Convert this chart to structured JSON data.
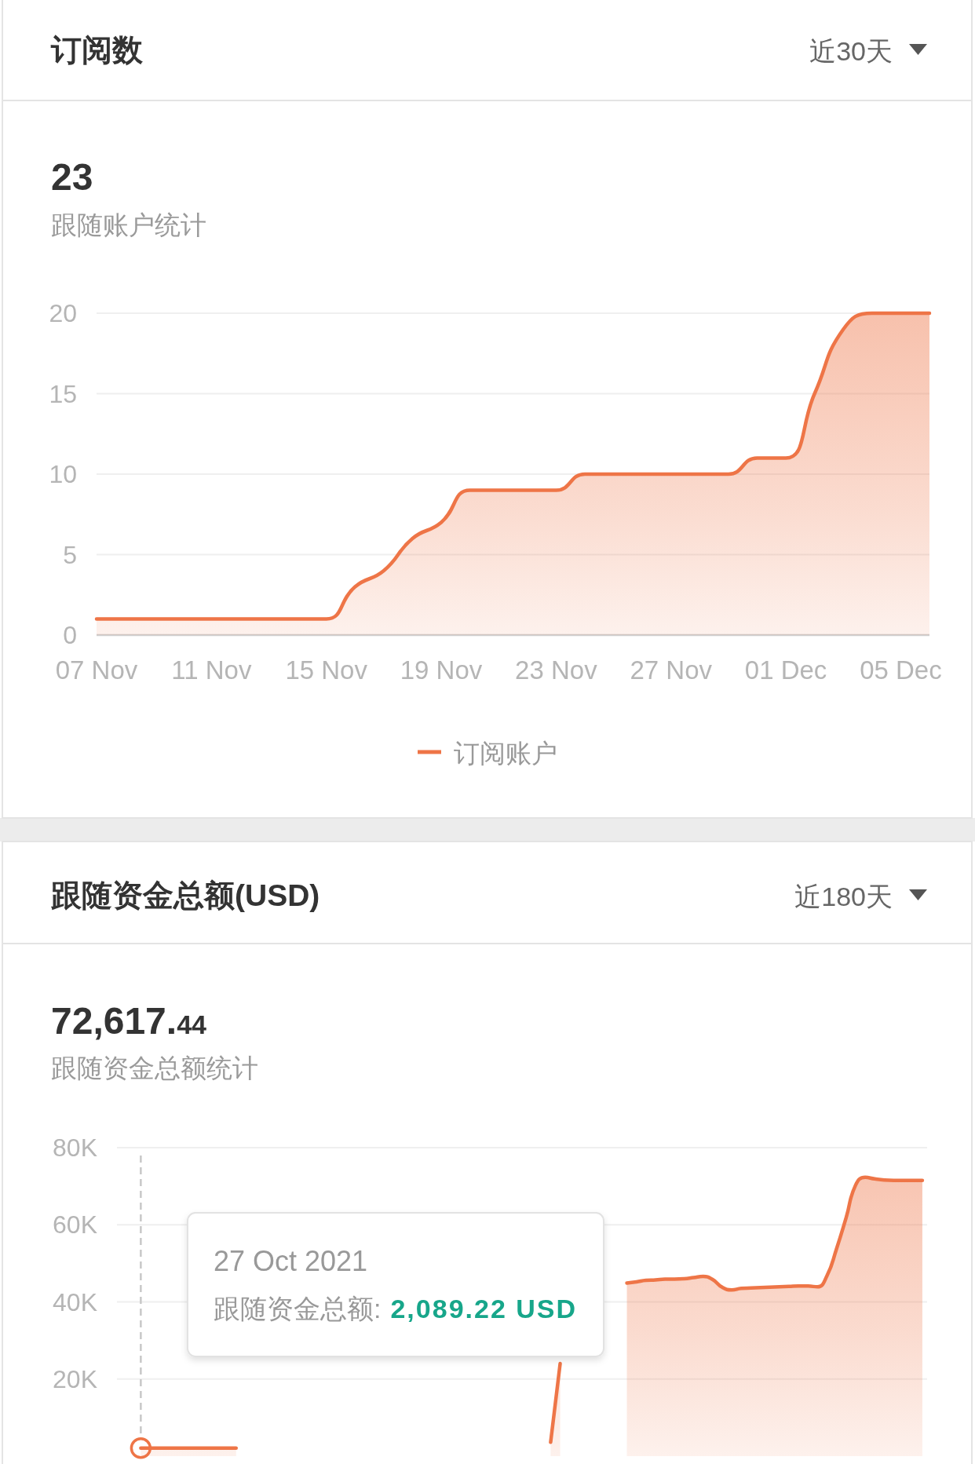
{
  "chart_data": [
    {
      "type": "area",
      "title": "订阅数",
      "annotations": [
        "近30天",
        "23",
        "跟随账户统计"
      ],
      "categories": [
        "07 Nov",
        null,
        null,
        null,
        "11 Nov",
        null,
        null,
        null,
        "15 Nov",
        null,
        null,
        null,
        "19 Nov",
        null,
        null,
        null,
        "23 Nov",
        null,
        null,
        null,
        "27 Nov",
        null,
        null,
        null,
        "01 Dec",
        null,
        null,
        null,
        "05 Dec",
        null
      ],
      "series": [
        {
          "name": "订阅账户",
          "color": "#ee7547",
          "values": [
            1,
            1,
            1,
            1,
            1,
            1,
            1,
            1,
            1,
            3,
            4,
            6,
            7,
            9,
            9,
            9,
            9,
            10,
            10,
            10,
            10,
            10,
            10,
            11,
            11,
            15,
            19,
            20,
            20,
            20
          ]
        }
      ],
      "ylim": [
        0,
        20
      ],
      "yticks": [
        0,
        5,
        10,
        15,
        20
      ],
      "grid": "y",
      "legend": "bottom"
    },
    {
      "type": "area",
      "title": "跟随资金总额(USD)",
      "annotations": [
        "近180天",
        "72,617.44",
        "跟随资金总额统计",
        "27 Oct 2021",
        "跟随资金总额:",
        "2,089.22 USD"
      ],
      "categories": [
        null,
        null,
        null,
        null,
        null,
        null,
        null,
        null,
        null,
        null,
        null,
        null,
        null,
        null,
        null,
        null,
        null,
        null,
        null,
        null,
        null,
        null,
        null,
        null,
        null,
        null,
        null,
        null,
        null,
        null,
        null,
        null,
        null,
        null,
        null,
        null,
        null,
        null,
        null,
        null,
        null,
        null,
        null,
        null,
        null,
        null,
        null,
        null,
        null,
        null,
        null,
        null,
        null,
        null,
        null,
        null,
        null,
        null,
        null,
        null,
        null,
        null,
        null,
        null,
        null,
        null,
        null,
        null,
        null,
        null,
        null,
        null,
        null,
        null,
        null,
        null,
        null,
        null,
        null,
        null,
        null,
        null,
        null,
        null,
        null
      ],
      "series": [
        {
          "color": "#ee7547",
          "values": [
            null,
            null,
            2089.22,
            2100,
            2100,
            2100,
            2100,
            2100,
            2100,
            2100,
            2100,
            2100,
            2100,
            null,
            null,
            null,
            null,
            null,
            null,
            null,
            null,
            null,
            null,
            null,
            null,
            null,
            null,
            null,
            null,
            null,
            null,
            null,
            null,
            null,
            null,
            null,
            null,
            null,
            null,
            null,
            null,
            null,
            null,
            null,
            null,
            3600,
            24000,
            null,
            null,
            null,
            null,
            null,
            null,
            44900,
            45200,
            45600,
            45700,
            45900,
            45900,
            46000,
            46300,
            46600,
            45800,
            43800,
            43100,
            43500,
            43600,
            43700,
            43800,
            43900,
            44000,
            44100,
            44100,
            43900,
            46800,
            53800,
            61800,
            70300,
            72300,
            71900,
            71600,
            71500,
            71500,
            71500,
            71500
          ]
        }
      ],
      "ylim": [
        0,
        80000
      ],
      "yticks": [
        {
          "value": 20000,
          "label": "20K"
        },
        {
          "value": 40000,
          "label": "40K"
        },
        {
          "value": 60000,
          "label": "60K"
        },
        {
          "value": 80000,
          "label": "80K"
        }
      ],
      "grid": "y",
      "tick_labels": "y"
    }
  ]
}
